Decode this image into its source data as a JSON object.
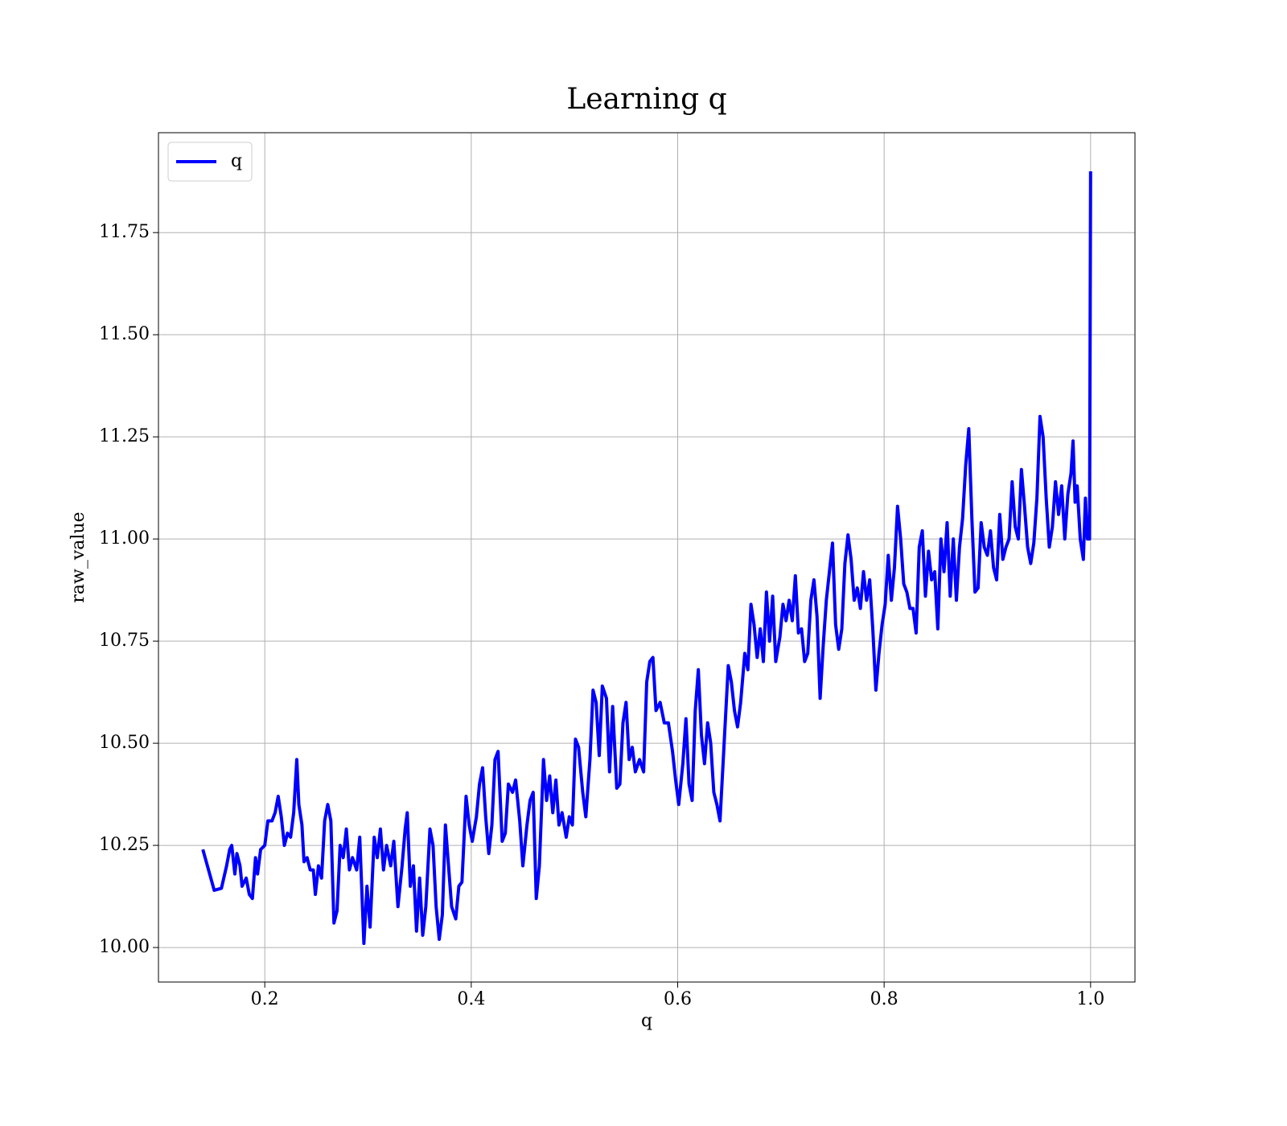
{
  "chart_data": {
    "type": "line",
    "title": "Learning q",
    "xlabel": "q",
    "ylabel": "raw_value",
    "x": [
      0.14,
      0.151,
      0.158,
      0.163,
      0.166,
      0.168,
      0.171,
      0.173,
      0.176,
      0.178,
      0.182,
      0.185,
      0.188,
      0.191,
      0.193,
      0.196,
      0.2,
      0.203,
      0.207,
      0.21,
      0.213,
      0.216,
      0.219,
      0.222,
      0.225,
      0.228,
      0.231,
      0.233,
      0.236,
      0.238,
      0.241,
      0.244,
      0.247,
      0.249,
      0.252,
      0.255,
      0.258,
      0.261,
      0.264,
      0.267,
      0.27,
      0.273,
      0.276,
      0.279,
      0.282,
      0.285,
      0.289,
      0.292,
      0.296,
      0.299,
      0.302,
      0.306,
      0.309,
      0.312,
      0.315,
      0.318,
      0.322,
      0.325,
      0.329,
      0.333,
      0.336,
      0.338,
      0.341,
      0.344,
      0.347,
      0.35,
      0.353,
      0.356,
      0.36,
      0.363,
      0.366,
      0.369,
      0.372,
      0.375,
      0.378,
      0.381,
      0.385,
      0.388,
      0.391,
      0.395,
      0.398,
      0.401,
      0.405,
      0.408,
      0.411,
      0.414,
      0.417,
      0.42,
      0.423,
      0.426,
      0.43,
      0.433,
      0.436,
      0.44,
      0.443,
      0.447,
      0.45,
      0.454,
      0.457,
      0.46,
      0.463,
      0.466,
      0.47,
      0.473,
      0.476,
      0.479,
      0.482,
      0.485,
      0.488,
      0.492,
      0.495,
      0.498,
      0.501,
      0.504,
      0.508,
      0.511,
      0.515,
      0.518,
      0.521,
      0.524,
      0.527,
      0.531,
      0.534,
      0.537,
      0.541,
      0.544,
      0.547,
      0.55,
      0.553,
      0.556,
      0.559,
      0.563,
      0.567,
      0.57,
      0.573,
      0.576,
      0.579,
      0.583,
      0.587,
      0.591,
      0.595,
      0.598,
      0.601,
      0.605,
      0.608,
      0.611,
      0.614,
      0.617,
      0.62,
      0.623,
      0.626,
      0.629,
      0.632,
      0.635,
      0.638,
      0.641,
      0.645,
      0.649,
      0.652,
      0.655,
      0.658,
      0.661,
      0.665,
      0.668,
      0.671,
      0.674,
      0.677,
      0.68,
      0.683,
      0.686,
      0.689,
      0.692,
      0.695,
      0.699,
      0.702,
      0.705,
      0.708,
      0.711,
      0.714,
      0.717,
      0.72,
      0.723,
      0.726,
      0.729,
      0.732,
      0.735,
      0.738,
      0.741,
      0.744,
      0.747,
      0.75,
      0.753,
      0.756,
      0.759,
      0.762,
      0.765,
      0.768,
      0.771,
      0.774,
      0.777,
      0.78,
      0.783,
      0.786,
      0.789,
      0.792,
      0.795,
      0.798,
      0.801,
      0.804,
      0.807,
      0.81,
      0.813,
      0.816,
      0.819,
      0.822,
      0.825,
      0.828,
      0.831,
      0.834,
      0.837,
      0.84,
      0.843,
      0.846,
      0.849,
      0.852,
      0.855,
      0.858,
      0.861,
      0.864,
      0.867,
      0.87,
      0.873,
      0.876,
      0.879,
      0.882,
      0.885,
      0.888,
      0.891,
      0.894,
      0.897,
      0.9,
      0.903,
      0.906,
      0.909,
      0.912,
      0.915,
      0.918,
      0.921,
      0.924,
      0.927,
      0.93,
      0.933,
      0.936,
      0.939,
      0.942,
      0.945,
      0.948,
      0.951,
      0.954,
      0.957,
      0.96,
      0.963,
      0.966,
      0.969,
      0.972,
      0.975,
      0.978,
      0.981,
      0.983,
      0.985,
      0.987,
      0.99,
      0.993,
      0.995,
      0.997,
      0.999,
      1.0
    ],
    "series": [
      {
        "name": "q",
        "color": "#0000ff",
        "values": [
          10.24,
          10.14,
          10.145,
          10.2,
          10.24,
          10.25,
          10.18,
          10.23,
          10.2,
          10.15,
          10.17,
          10.13,
          10.12,
          10.22,
          10.18,
          10.24,
          10.25,
          10.31,
          10.31,
          10.33,
          10.37,
          10.32,
          10.25,
          10.28,
          10.27,
          10.33,
          10.46,
          10.35,
          10.3,
          10.21,
          10.22,
          10.19,
          10.19,
          10.13,
          10.2,
          10.17,
          10.31,
          10.35,
          10.31,
          10.06,
          10.09,
          10.25,
          10.22,
          10.29,
          10.19,
          10.22,
          10.19,
          10.27,
          10.01,
          10.15,
          10.05,
          10.27,
          10.22,
          10.29,
          10.19,
          10.25,
          10.2,
          10.26,
          10.1,
          10.2,
          10.29,
          10.33,
          10.15,
          10.2,
          10.04,
          10.17,
          10.03,
          10.1,
          10.29,
          10.25,
          10.1,
          10.02,
          10.08,
          10.3,
          10.2,
          10.1,
          10.07,
          10.15,
          10.16,
          10.37,
          10.3,
          10.26,
          10.32,
          10.4,
          10.44,
          10.32,
          10.23,
          10.3,
          10.46,
          10.48,
          10.26,
          10.28,
          10.4,
          10.38,
          10.41,
          10.31,
          10.2,
          10.3,
          10.36,
          10.38,
          10.12,
          10.2,
          10.46,
          10.36,
          10.42,
          10.33,
          10.41,
          10.3,
          10.33,
          10.27,
          10.32,
          10.3,
          10.51,
          10.49,
          10.38,
          10.32,
          10.46,
          10.63,
          10.6,
          10.47,
          10.64,
          10.61,
          10.43,
          10.59,
          10.39,
          10.4,
          10.55,
          10.6,
          10.46,
          10.49,
          10.43,
          10.46,
          10.43,
          10.65,
          10.7,
          10.71,
          10.58,
          10.6,
          10.55,
          10.55,
          10.48,
          10.41,
          10.35,
          10.45,
          10.56,
          10.4,
          10.36,
          10.58,
          10.68,
          10.52,
          10.45,
          10.55,
          10.5,
          10.38,
          10.35,
          10.31,
          10.5,
          10.69,
          10.65,
          10.58,
          10.54,
          10.6,
          10.72,
          10.68,
          10.84,
          10.79,
          10.71,
          10.78,
          10.7,
          10.87,
          10.75,
          10.86,
          10.7,
          10.76,
          10.84,
          10.8,
          10.85,
          10.8,
          10.91,
          10.77,
          10.78,
          10.7,
          10.72,
          10.85,
          10.9,
          10.81,
          10.61,
          10.74,
          10.85,
          10.92,
          10.99,
          10.79,
          10.73,
          10.78,
          10.94,
          11.01,
          10.95,
          10.85,
          10.88,
          10.83,
          10.92,
          10.85,
          10.9,
          10.78,
          10.63,
          10.72,
          10.79,
          10.84,
          10.96,
          10.85,
          10.93,
          11.08,
          11.0,
          10.89,
          10.87,
          10.83,
          10.83,
          10.77,
          10.98,
          11.02,
          10.86,
          10.97,
          10.9,
          10.92,
          10.78,
          11.0,
          10.92,
          11.04,
          10.86,
          11.0,
          10.85,
          10.98,
          11.05,
          11.18,
          11.27,
          11.05,
          10.87,
          10.88,
          11.04,
          10.98,
          10.96,
          11.02,
          10.93,
          10.9,
          11.06,
          10.95,
          10.98,
          11.0,
          11.14,
          11.03,
          11.0,
          11.17,
          11.08,
          10.98,
          10.94,
          10.99,
          11.1,
          11.3,
          11.25,
          11.1,
          10.98,
          11.03,
          11.14,
          11.06,
          11.13,
          11.0,
          11.11,
          11.16,
          11.24,
          11.09,
          11.13,
          11.0,
          10.95,
          11.1,
          11.0,
          11.0,
          11.9
        ]
      }
    ],
    "xlim": [
      0.097,
      1.043
    ],
    "ylim": [
      9.9155,
      11.9945
    ],
    "xticks": [
      0.2,
      0.4,
      0.6,
      0.8,
      {
        "value": 1,
        "label": "1.0"
      }
    ],
    "yticks": [
      {
        "value": 10,
        "label": "10.00"
      },
      {
        "value": 10.25,
        "label": "10.25"
      },
      {
        "value": 10.5,
        "label": "10.50"
      },
      {
        "value": 10.75,
        "label": "10.75"
      },
      {
        "value": 11,
        "label": "11.00"
      },
      {
        "value": 11.25,
        "label": "11.25"
      },
      {
        "value": 11.5,
        "label": "11.50"
      },
      {
        "value": 11.75,
        "label": "11.75"
      }
    ],
    "grid": true,
    "legend": "upper left"
  }
}
